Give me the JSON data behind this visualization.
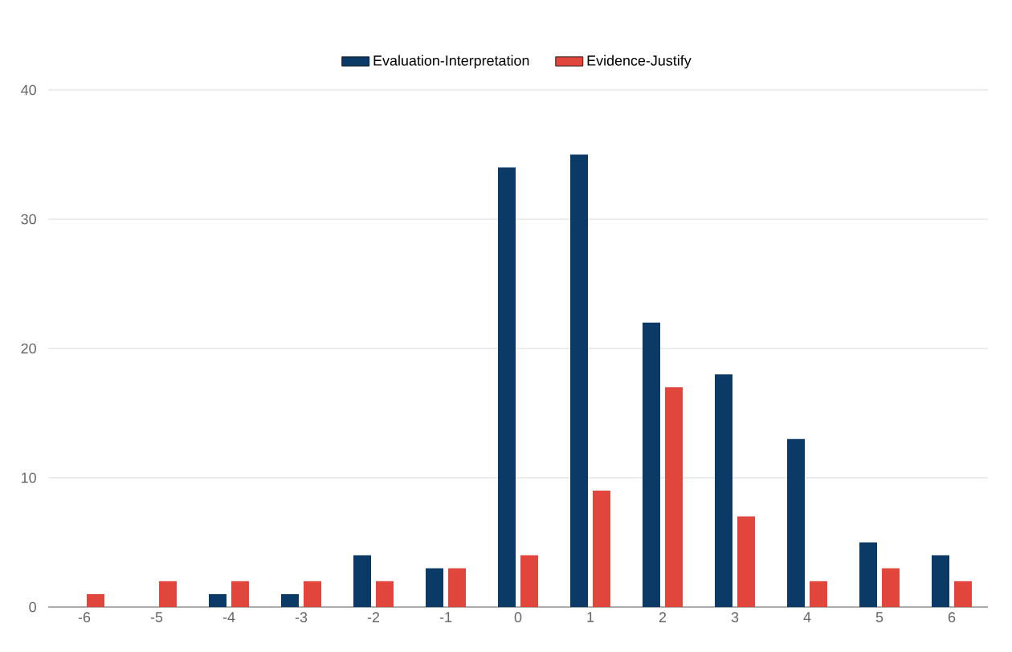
{
  "chart_data": {
    "type": "bar",
    "categories": [
      "-6",
      "-5",
      "-4",
      "-3",
      "-2",
      "-1",
      "0",
      "1",
      "2",
      "3",
      "4",
      "5",
      "6"
    ],
    "series": [
      {
        "name": "Evaluation-Interpretation",
        "color": "#0b3a66",
        "values": [
          0,
          0,
          1,
          1,
          4,
          3,
          34,
          35,
          22,
          18,
          13,
          5,
          4
        ]
      },
      {
        "name": "Evidence-Justify",
        "color": "#e0463c",
        "values": [
          1,
          2,
          2,
          2,
          2,
          3,
          4,
          9,
          17,
          7,
          2,
          3,
          2
        ]
      }
    ],
    "ylim": [
      0,
      40
    ],
    "yticks": [
      0,
      10,
      20,
      30,
      40
    ],
    "grid": "y",
    "legend": "top"
  }
}
